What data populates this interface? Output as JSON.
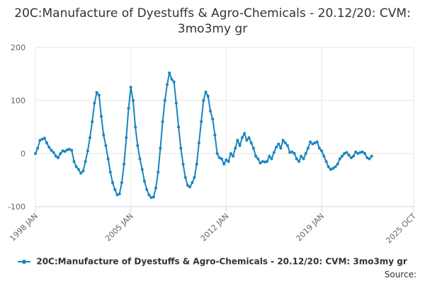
{
  "title": "20C:Manufacture of Dyestuffs & Agro-Chemicals - 20.12/20: CVM: 3mo3my gr",
  "source_label": "Source:",
  "colors": {
    "series": "#1a85bf",
    "grid": "#e6e6e6",
    "axis": "#ccd6eb"
  },
  "chart_data": {
    "type": "line",
    "title": "20C:Manufacture of Dyestuffs & Agro-Chemicals - 20.12/20: CVM: 3mo3my gr",
    "xlabel": "",
    "ylabel": "",
    "ylim": [
      -100,
      200
    ],
    "yticks": [
      -100,
      0,
      100,
      200
    ],
    "xlim": [
      "1998-01",
      "2025-10"
    ],
    "xticks": [
      "1998 JAN",
      "2005 JAN",
      "2012 JAN",
      "2019 JAN",
      "2025 OCT"
    ],
    "xtick_dates": [
      "1998-01",
      "2005-01",
      "2012-01",
      "2019-01",
      "2025-10"
    ],
    "grid": true,
    "legend_position": "bottom",
    "series": [
      {
        "name": "20C:Manufacture of Dyestuffs & Agro-Chemicals - 20.12/20: CVM: 3mo3my gr",
        "points": [
          [
            "1998-01",
            0
          ],
          [
            "1998-03",
            10
          ],
          [
            "1998-05",
            25
          ],
          [
            "1998-07",
            27
          ],
          [
            "1998-09",
            29
          ],
          [
            "1998-11",
            20
          ],
          [
            "1999-01",
            12
          ],
          [
            "1999-03",
            6
          ],
          [
            "1999-05",
            2
          ],
          [
            "1999-07",
            -5
          ],
          [
            "1999-09",
            -8
          ],
          [
            "1999-11",
            0
          ],
          [
            "2000-01",
            5
          ],
          [
            "2000-03",
            4
          ],
          [
            "2000-05",
            7
          ],
          [
            "2000-07",
            8
          ],
          [
            "2000-09",
            6
          ],
          [
            "2000-11",
            -15
          ],
          [
            "2001-01",
            -25
          ],
          [
            "2001-03",
            -30
          ],
          [
            "2001-05",
            -37
          ],
          [
            "2001-07",
            -33
          ],
          [
            "2001-09",
            -15
          ],
          [
            "2001-11",
            5
          ],
          [
            "2002-01",
            30
          ],
          [
            "2002-03",
            60
          ],
          [
            "2002-05",
            95
          ],
          [
            "2002-07",
            115
          ],
          [
            "2002-09",
            110
          ],
          [
            "2002-11",
            70
          ],
          [
            "2003-01",
            35
          ],
          [
            "2003-03",
            15
          ],
          [
            "2003-05",
            -10
          ],
          [
            "2003-07",
            -35
          ],
          [
            "2003-09",
            -55
          ],
          [
            "2003-11",
            -68
          ],
          [
            "2004-01",
            -78
          ],
          [
            "2004-03",
            -76
          ],
          [
            "2004-05",
            -55
          ],
          [
            "2004-07",
            -20
          ],
          [
            "2004-09",
            30
          ],
          [
            "2004-11",
            85
          ],
          [
            "2005-01",
            125
          ],
          [
            "2005-03",
            100
          ],
          [
            "2005-05",
            50
          ],
          [
            "2005-07",
            15
          ],
          [
            "2005-09",
            -10
          ],
          [
            "2005-11",
            -30
          ],
          [
            "2006-01",
            -52
          ],
          [
            "2006-03",
            -68
          ],
          [
            "2006-05",
            -78
          ],
          [
            "2006-07",
            -83
          ],
          [
            "2006-09",
            -82
          ],
          [
            "2006-11",
            -65
          ],
          [
            "2007-01",
            -35
          ],
          [
            "2007-03",
            10
          ],
          [
            "2007-05",
            60
          ],
          [
            "2007-07",
            100
          ],
          [
            "2007-09",
            130
          ],
          [
            "2007-11",
            152
          ],
          [
            "2008-01",
            140
          ],
          [
            "2008-03",
            135
          ],
          [
            "2008-05",
            95
          ],
          [
            "2008-07",
            50
          ],
          [
            "2008-09",
            10
          ],
          [
            "2008-11",
            -20
          ],
          [
            "2009-01",
            -45
          ],
          [
            "2009-03",
            -60
          ],
          [
            "2009-05",
            -63
          ],
          [
            "2009-07",
            -55
          ],
          [
            "2009-09",
            -45
          ],
          [
            "2009-11",
            -20
          ],
          [
            "2010-01",
            20
          ],
          [
            "2010-03",
            60
          ],
          [
            "2010-05",
            100
          ],
          [
            "2010-07",
            116
          ],
          [
            "2010-09",
            108
          ],
          [
            "2010-11",
            80
          ],
          [
            "2011-01",
            65
          ],
          [
            "2011-03",
            35
          ],
          [
            "2011-05",
            0
          ],
          [
            "2011-07",
            -8
          ],
          [
            "2011-09",
            -10
          ],
          [
            "2011-11",
            -20
          ],
          [
            "2012-01",
            -12
          ],
          [
            "2012-03",
            -15
          ],
          [
            "2012-05",
            0
          ],
          [
            "2012-07",
            -5
          ],
          [
            "2012-09",
            10
          ],
          [
            "2012-11",
            25
          ],
          [
            "2013-01",
            15
          ],
          [
            "2013-03",
            30
          ],
          [
            "2013-05",
            38
          ],
          [
            "2013-07",
            25
          ],
          [
            "2013-09",
            30
          ],
          [
            "2013-11",
            20
          ],
          [
            "2014-01",
            10
          ],
          [
            "2014-03",
            -5
          ],
          [
            "2014-05",
            -10
          ],
          [
            "2014-07",
            -18
          ],
          [
            "2014-09",
            -15
          ],
          [
            "2014-11",
            -16
          ],
          [
            "2015-01",
            -15
          ],
          [
            "2015-03",
            -5
          ],
          [
            "2015-05",
            -10
          ],
          [
            "2015-07",
            2
          ],
          [
            "2015-09",
            12
          ],
          [
            "2015-11",
            18
          ],
          [
            "2016-01",
            10
          ],
          [
            "2016-03",
            25
          ],
          [
            "2016-05",
            20
          ],
          [
            "2016-07",
            15
          ],
          [
            "2016-09",
            2
          ],
          [
            "2016-11",
            3
          ],
          [
            "2017-01",
            0
          ],
          [
            "2017-03",
            -10
          ],
          [
            "2017-05",
            -15
          ],
          [
            "2017-07",
            -5
          ],
          [
            "2017-09",
            -10
          ],
          [
            "2017-11",
            0
          ],
          [
            "2018-01",
            10
          ],
          [
            "2018-03",
            22
          ],
          [
            "2018-05",
            18
          ],
          [
            "2018-07",
            20
          ],
          [
            "2018-09",
            22
          ],
          [
            "2018-11",
            10
          ],
          [
            "2019-01",
            5
          ],
          [
            "2019-03",
            -5
          ],
          [
            "2019-05",
            -15
          ],
          [
            "2019-07",
            -25
          ],
          [
            "2019-09",
            -30
          ],
          [
            "2019-11",
            -28
          ],
          [
            "2020-01",
            -25
          ],
          [
            "2020-03",
            -20
          ],
          [
            "2020-05",
            -10
          ],
          [
            "2020-07",
            -5
          ],
          [
            "2020-09",
            0
          ],
          [
            "2020-11",
            2
          ],
          [
            "2021-01",
            -3
          ],
          [
            "2021-03",
            -8
          ],
          [
            "2021-05",
            -5
          ],
          [
            "2021-07",
            3
          ],
          [
            "2021-09",
            0
          ],
          [
            "2021-11",
            2
          ],
          [
            "2022-01",
            3
          ],
          [
            "2022-03",
            0
          ],
          [
            "2022-05",
            -8
          ],
          [
            "2022-07",
            -10
          ],
          [
            "2022-09",
            -5
          ]
        ]
      }
    ]
  }
}
